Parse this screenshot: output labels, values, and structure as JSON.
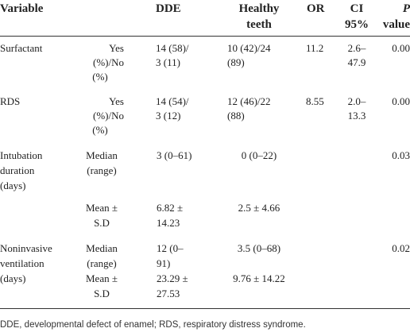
{
  "header": {
    "variable": "Variable",
    "dde": "DDE",
    "healthy_1": "Healthy",
    "healthy_2": "teeth",
    "or": "OR",
    "ci_1": "CI",
    "ci_2": "95%",
    "p_1": "P",
    "p_2": "value"
  },
  "rows": {
    "surfactant": {
      "variable": "Surfactant",
      "stat": [
        "Yes",
        "(%)/No",
        "(%)"
      ],
      "dde": [
        "14 (58)/",
        "3 (11)"
      ],
      "healthy": [
        "10 (42)/24",
        "(89)"
      ],
      "or": "11.2",
      "ci": [
        "2.6–",
        "47.9"
      ],
      "p": "0.00"
    },
    "rds": {
      "variable": "RDS",
      "stat": [
        "Yes",
        "(%)/No",
        "(%)"
      ],
      "dde": [
        "14 (54)/",
        "3 (12)"
      ],
      "healthy": [
        "12 (46)/22",
        "(88)"
      ],
      "or": "8.55",
      "ci": [
        "2.0–",
        "13.3"
      ],
      "p": "0.00"
    },
    "intubation": {
      "variable": [
        "Intubation",
        "duration",
        "(days)"
      ],
      "stat_a": [
        "Median",
        "(range)"
      ],
      "stat_b": [
        "Mean ±",
        "S.D"
      ],
      "dde_a": "3 (0–61)",
      "dde_b": [
        "6.82 ±",
        "14.23"
      ],
      "healthy_a": "0 (0–22)",
      "healthy_b": "2.5 ± 4.66",
      "p": "0.03"
    },
    "noninvasive": {
      "variable": [
        "Noninvasive",
        "ventilation",
        "(days)"
      ],
      "stat_a": [
        "Median",
        "(range)"
      ],
      "stat_b": [
        "Mean ±",
        "S.D"
      ],
      "dde_a": [
        "12 (0–",
        "91)"
      ],
      "dde_b": [
        "23.29 ±",
        "27.53"
      ],
      "healthy_a": "3.5 (0–68)",
      "healthy_b": "9.76 ± 14.22",
      "p": "0.02"
    }
  },
  "footnote": "DDE, developmental defect of enamel; RDS, respiratory distress syndrome."
}
